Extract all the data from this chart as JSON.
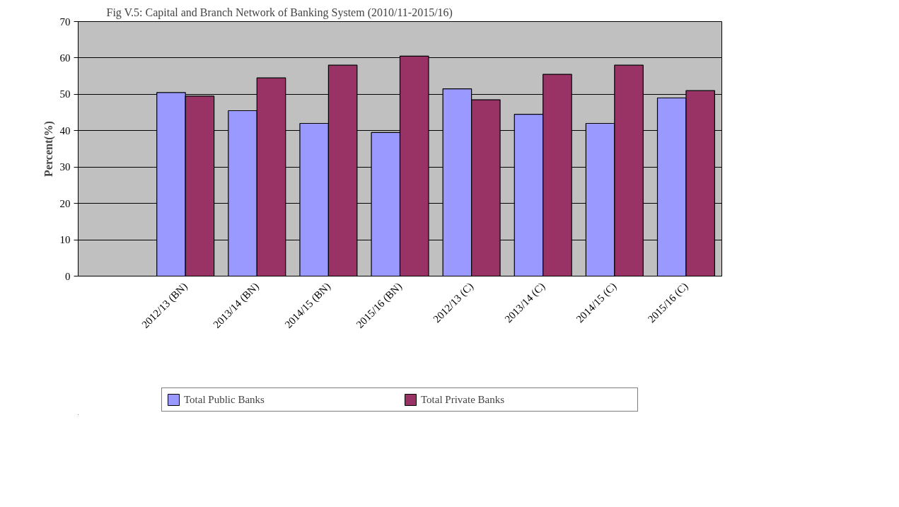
{
  "chart_data": {
    "type": "bar",
    "title": "Fig V.5: Capital and Branch Network of  Banking System (2010/11-2015/16)",
    "ylabel": "Percent(%)",
    "categories": [
      null,
      "2012/13 (BN)",
      "2013/14 (BN)",
      "2014/15 (BN)",
      "2015/16 (BN)",
      "2012/13 (C)",
      "2013/14 (C)",
      "2014/15 (C)",
      "2015/16 (C)"
    ],
    "series": [
      {
        "name": "Total Public Banks",
        "color": "#9999ff",
        "values": [
          null,
          50.5,
          45.5,
          42,
          39.5,
          51.5,
          44.5,
          42,
          49
        ]
      },
      {
        "name": "Total Private Banks",
        "color": "#993366",
        "values": [
          null,
          49.5,
          54.5,
          58,
          60.5,
          48.5,
          55.5,
          58,
          51
        ]
      }
    ],
    "ylim": [
      0,
      70
    ],
    "yticks": [
      0,
      10,
      20,
      30,
      40,
      50,
      60,
      70
    ],
    "grid": "y",
    "legend": "bottom"
  }
}
